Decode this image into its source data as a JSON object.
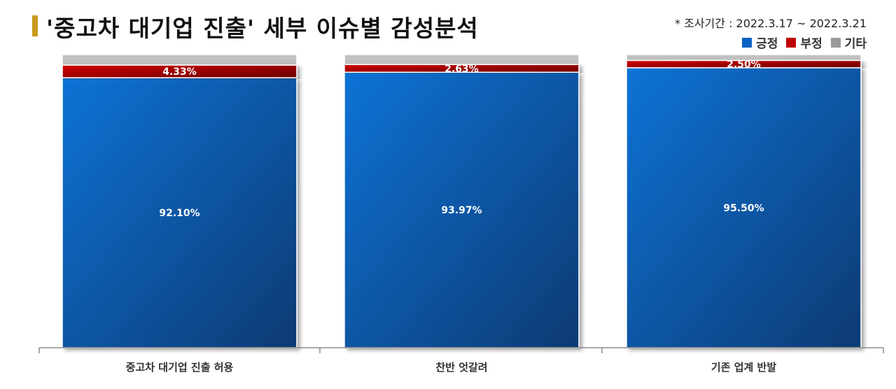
{
  "title": "'중고차 대기업 진출' 세부 이슈별 감성분석",
  "period": "* 조사기간 : 2022.3.17 ~ 2022.3.21",
  "legend": [
    {
      "label": "긍정",
      "color": "#0a63c2"
    },
    {
      "label": "부정",
      "color": "#c00000"
    },
    {
      "label": "기타",
      "color": "#9a9a9a"
    }
  ],
  "chart_data": {
    "type": "bar",
    "stacked": true,
    "categories": [
      "중고차 대기업 진출 허용",
      "찬반 엇갈려",
      "기존 업계 반발"
    ],
    "series": [
      {
        "name": "긍정",
        "values": [
          92.1,
          93.97,
          95.5
        ],
        "labels": [
          "92.10%",
          "93.97%",
          "95.50%"
        ],
        "color": "#0a63c2"
      },
      {
        "name": "부정",
        "values": [
          4.33,
          2.63,
          2.5
        ],
        "labels": [
          "4.33%",
          "2.63%",
          "2.50%"
        ],
        "color": "#c00000"
      },
      {
        "name": "기타",
        "values": [
          3.57,
          3.4,
          2.0
        ],
        "color": "#c0c0c0"
      }
    ],
    "ylim": [
      0,
      100
    ],
    "grid": false,
    "legend_position": "top-right"
  }
}
